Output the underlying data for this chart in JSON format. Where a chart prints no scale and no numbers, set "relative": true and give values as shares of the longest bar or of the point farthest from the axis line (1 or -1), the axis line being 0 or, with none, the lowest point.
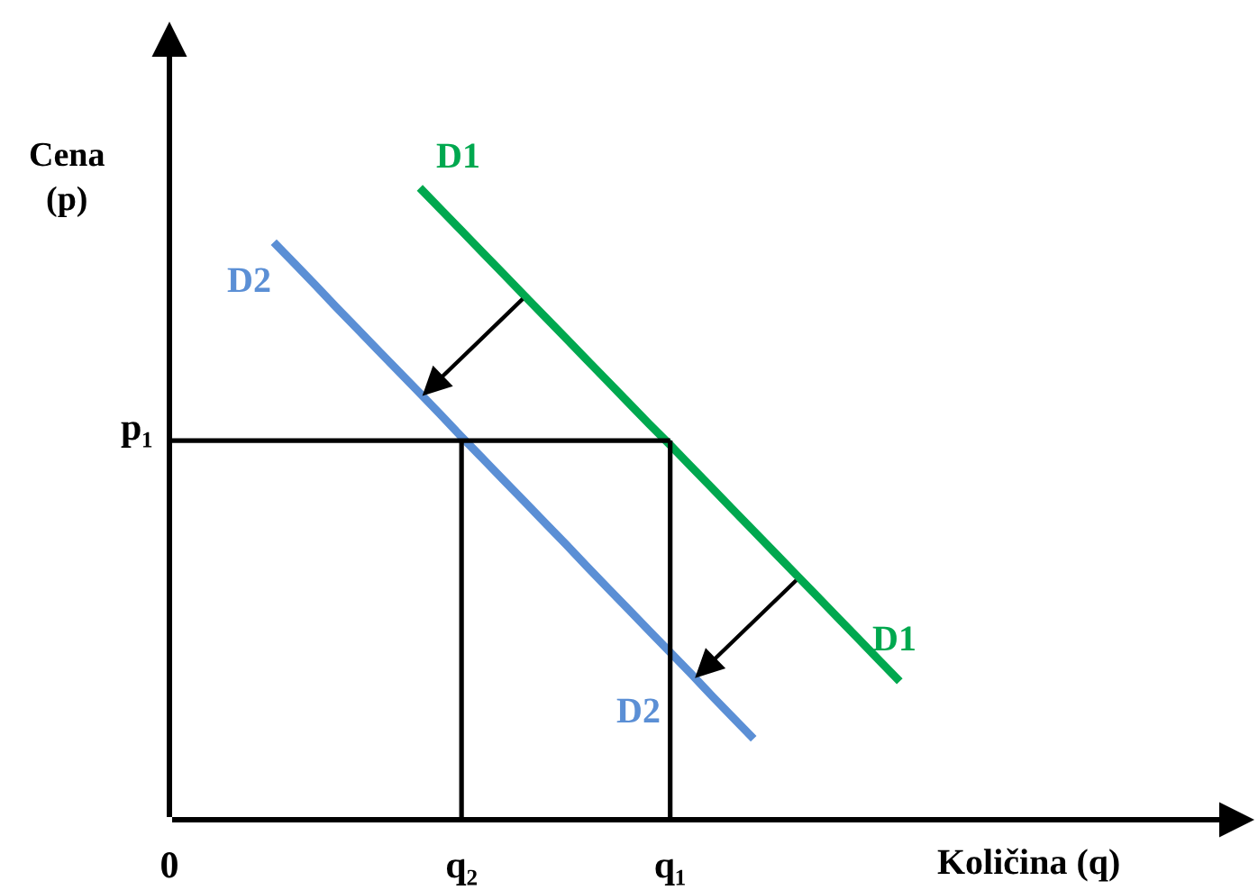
{
  "chart_data": {
    "type": "line",
    "relative": true,
    "xlabel": "Količina (q)",
    "ylabel": "Cena\n(p)",
    "categories": [
      "0",
      null,
      null,
      null,
      null,
      null,
      null,
      null,
      null,
      null,
      null,
      null,
      null,
      null,
      "q₂",
      null,
      null,
      null,
      null,
      null,
      null,
      null,
      null,
      null,
      "q₁",
      null,
      null,
      null,
      null,
      null,
      null,
      null,
      null,
      null,
      null,
      null,
      null,
      null,
      null,
      null,
      null,
      null,
      null,
      null,
      null,
      null,
      null,
      null,
      null,
      null,
      null,
      null,
      null
    ],
    "series": [
      {
        "name": "D1",
        "color": "#00a84f",
        "values": [
          null,
          null,
          null,
          null,
          null,
          null,
          null,
          null,
          null,
          null,
          null,
          null,
          1,
          0.966,
          0.932,
          0.898,
          0.864,
          0.83,
          0.796,
          0.762,
          0.728,
          0.694,
          0.66,
          0.626,
          0.593,
          0.559,
          0.525,
          0.491,
          0.457,
          0.423,
          0.389,
          0.355,
          0.321,
          0.287,
          0.253,
          0.219,
          null,
          null,
          null,
          null,
          null,
          null,
          null,
          null,
          null,
          null,
          null,
          null,
          null,
          null,
          null,
          null,
          null
        ]
      },
      {
        "name": "D2",
        "color": "#5b8fd5",
        "values": [
          null,
          null,
          null,
          null,
          null,
          0.914,
          0.88,
          0.846,
          0.811,
          0.777,
          0.743,
          0.709,
          0.675,
          0.641,
          0.606,
          0.572,
          0.538,
          0.504,
          0.47,
          0.436,
          0.401,
          0.367,
          0.333,
          0.299,
          0.265,
          0.231,
          0.196,
          0.162,
          0.128,
          null,
          null,
          null,
          null,
          null,
          null,
          null,
          null,
          null,
          null,
          null,
          null,
          null,
          null,
          null,
          null,
          null,
          null,
          null,
          null,
          null,
          null,
          null,
          null
        ]
      }
    ],
    "ref_lines": [
      {
        "axis": "y",
        "value": 0.6,
        "label": "p₁",
        "color": "#000000"
      },
      {
        "axis": "x",
        "value": "q₂",
        "color": "#000000"
      },
      {
        "axis": "x",
        "value": "q₁",
        "color": "#000000"
      }
    ]
  }
}
